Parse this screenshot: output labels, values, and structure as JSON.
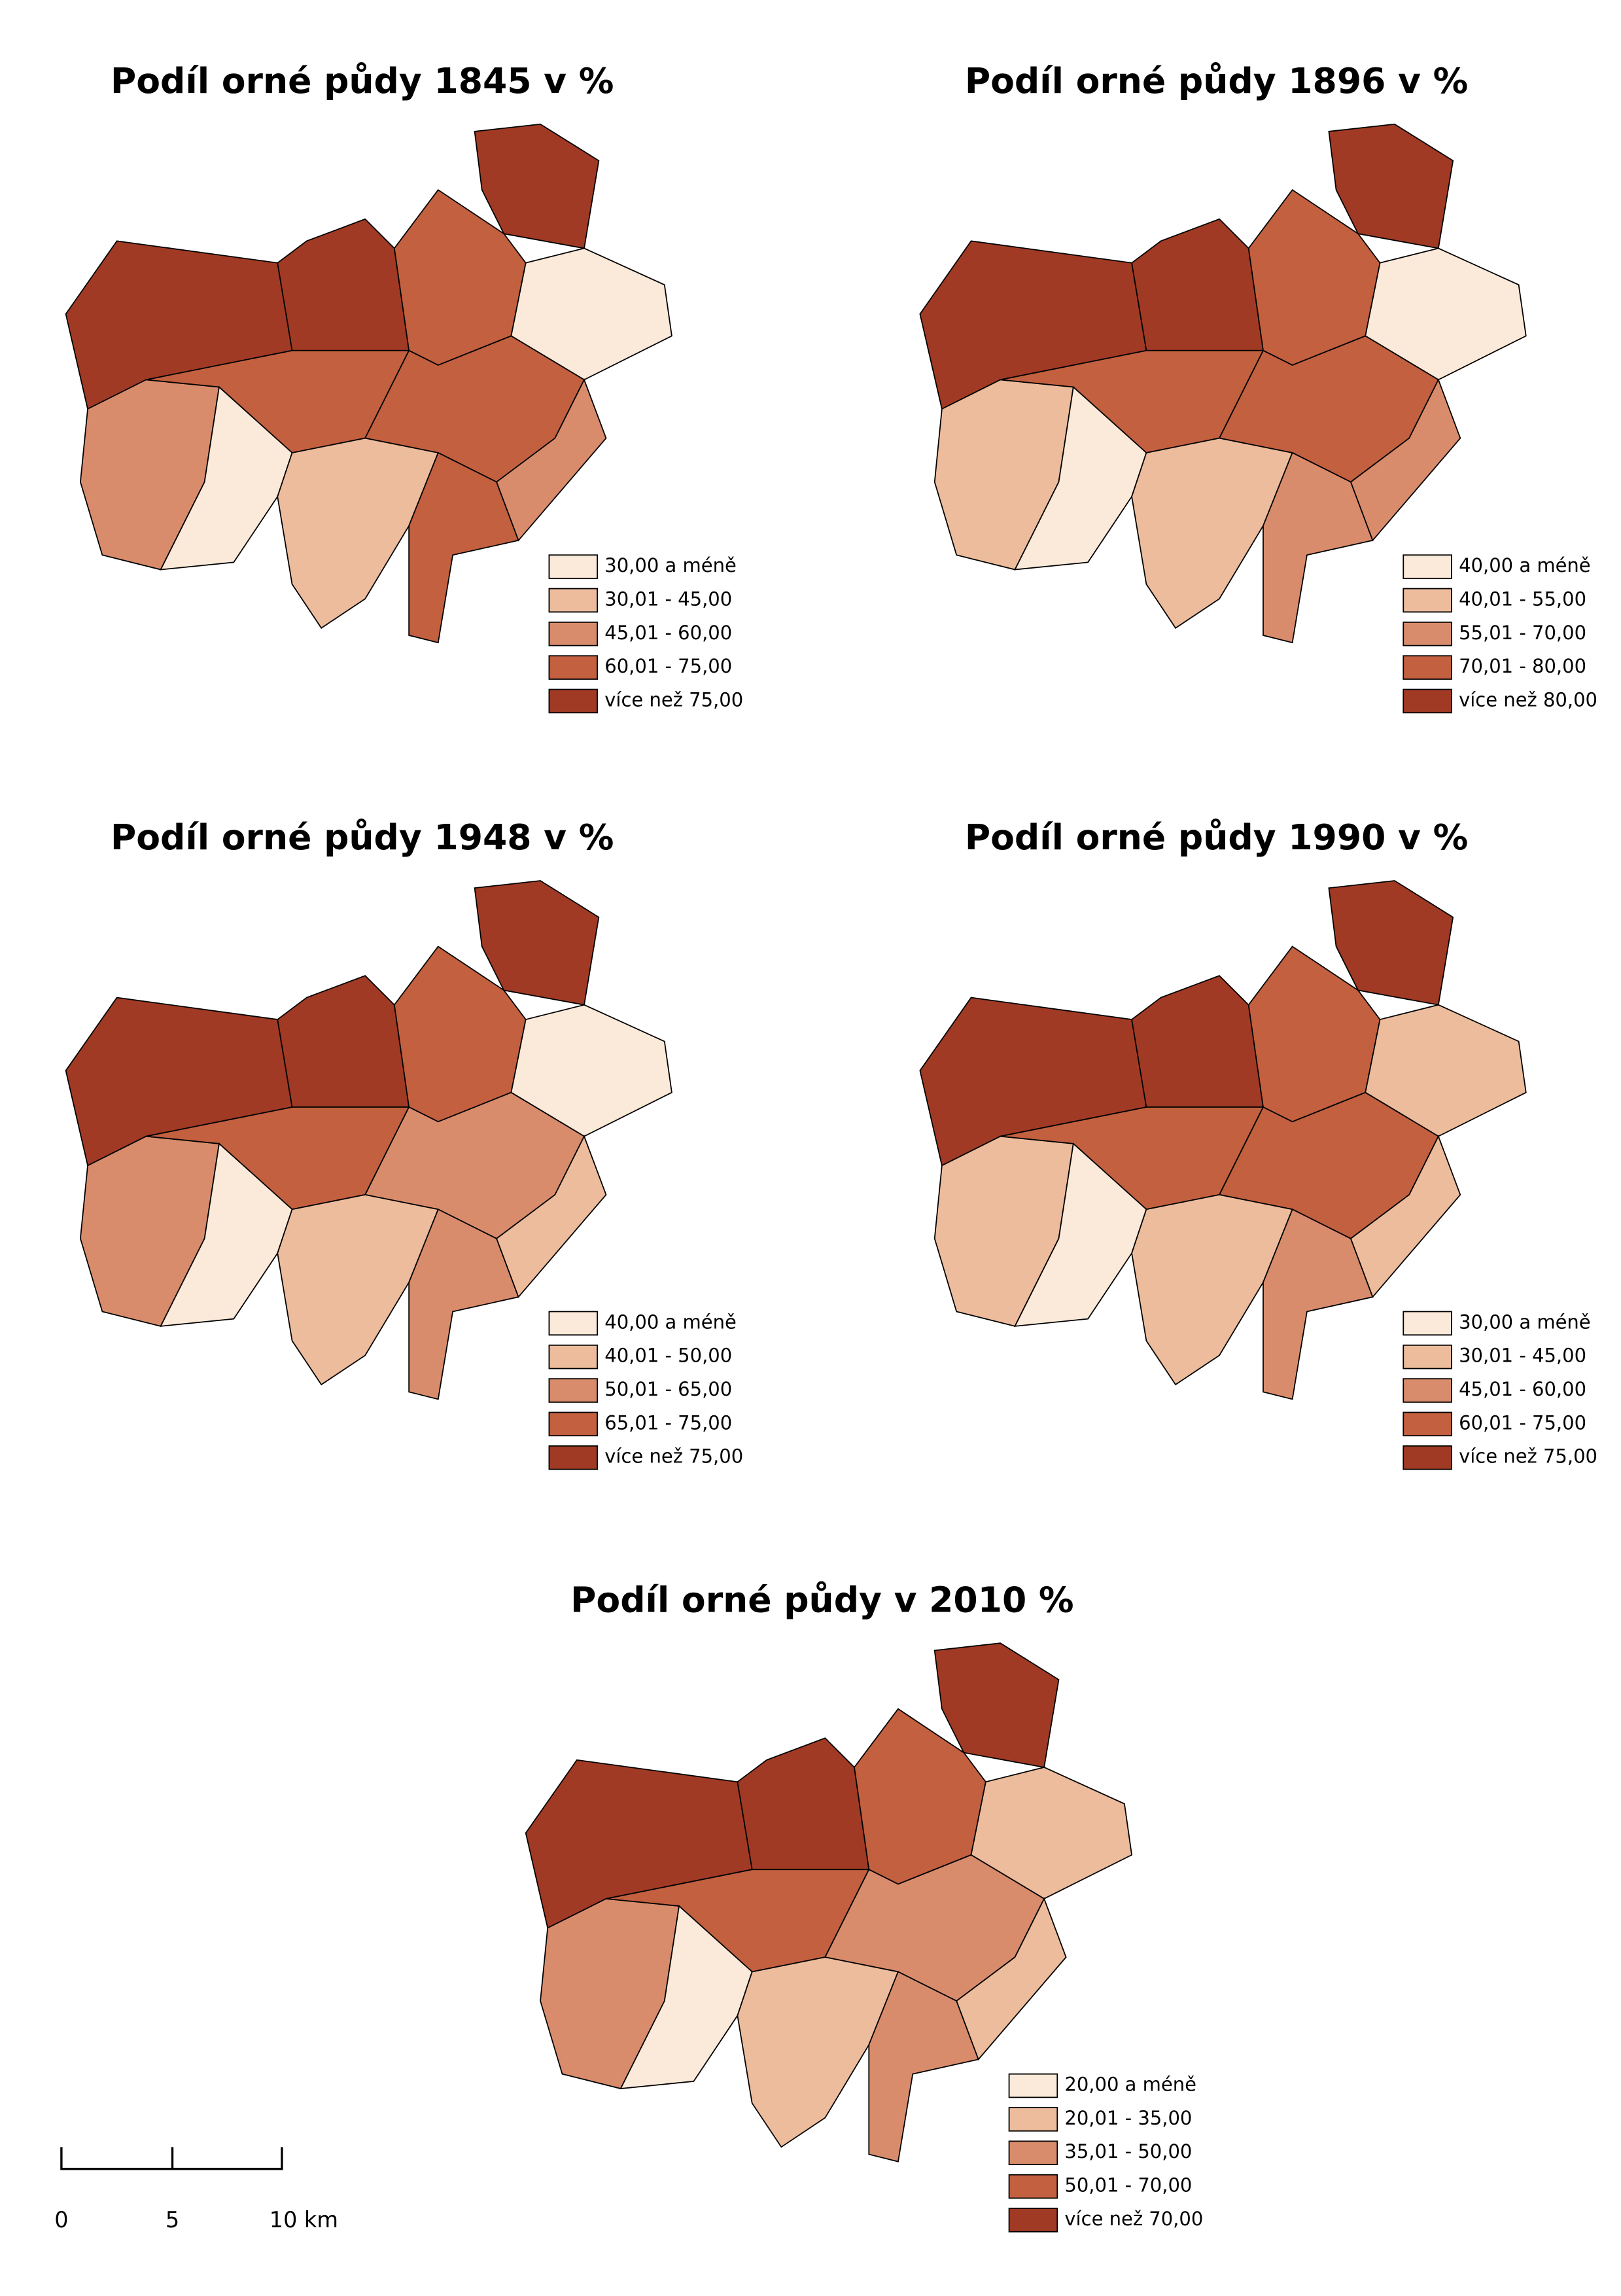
{
  "maps": [
    {
      "title": "Podíl orné půdy 1845 v %",
      "legend": [
        {
          "label": "30,00 a méně",
          "color": "#fbe9d9"
        },
        {
          "label": "30,01 - 45,00",
          "color": "#ecbc9c"
        },
        {
          "label": "45,01 - 60,00",
          "color": "#d98c6c"
        },
        {
          "label": "60,01 - 75,00",
          "color": "#c2603f"
        },
        {
          "label": "více než 75,00",
          "color": "#a13a24"
        }
      ]
    },
    {
      "title": "Podíl orné půdy 1896 v %",
      "legend": [
        {
          "label": "40,00 a méně",
          "color": "#fbe9d9"
        },
        {
          "label": "40,01 - 55,00",
          "color": "#ecbc9c"
        },
        {
          "label": "55,01 - 70,00",
          "color": "#d98c6c"
        },
        {
          "label": "70,01 - 80,00",
          "color": "#c2603f"
        },
        {
          "label": "více než 80,00",
          "color": "#a13a24"
        }
      ]
    },
    {
      "title": "Podíl orné půdy 1948 v %",
      "legend": [
        {
          "label": "40,00 a méně",
          "color": "#fbe9d9"
        },
        {
          "label": "40,01 - 50,00",
          "color": "#ecbc9c"
        },
        {
          "label": "50,01 - 65,00",
          "color": "#d98c6c"
        },
        {
          "label": "65,01 - 75,00",
          "color": "#c2603f"
        },
        {
          "label": "více než 75,00",
          "color": "#a13a24"
        }
      ]
    },
    {
      "title": "Podíl orné půdy 1990 v %",
      "legend": [
        {
          "label": "30,00 a méně",
          "color": "#fbe9d9"
        },
        {
          "label": "30,01 - 45,00",
          "color": "#ecbc9c"
        },
        {
          "label": "45,01 - 60,00",
          "color": "#d98c6c"
        },
        {
          "label": "60,01 - 75,00",
          "color": "#c2603f"
        },
        {
          "label": "více než 75,00",
          "color": "#a13a24"
        }
      ]
    },
    {
      "title": "Podíl orné půdy  v 2010 %",
      "legend": [
        {
          "label": "20,00 a méně",
          "color": "#fbe9d9"
        },
        {
          "label": "20,01 - 35,00",
          "color": "#ecbc9c"
        },
        {
          "label": "35,01 - 50,00",
          "color": "#d98c6c"
        },
        {
          "label": "50,01 - 70,00",
          "color": "#c2603f"
        },
        {
          "label": "více než 70,00",
          "color": "#a13a24"
        }
      ]
    }
  ],
  "scale_bar": {
    "labels": [
      "0",
      "5",
      "10 km"
    ]
  }
}
